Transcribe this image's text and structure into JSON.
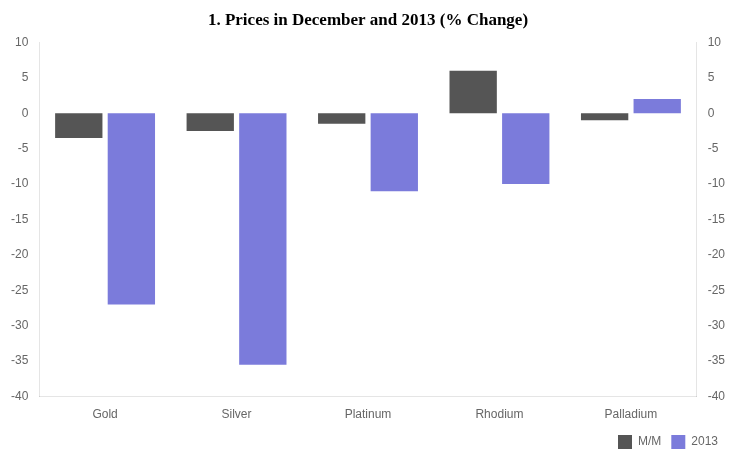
{
  "chart_data": {
    "type": "bar",
    "title": "1. Prices in December and 2013 (% Change)",
    "categories": [
      "Gold",
      "Silver",
      "Platinum",
      "Rhodium",
      "Palladium"
    ],
    "series": [
      {
        "name": "M/M",
        "color": "#555555",
        "values": [
          -3.5,
          -2.5,
          -1.5,
          6.0,
          -1.0
        ]
      },
      {
        "name": "2013",
        "color": "#7b7bdb",
        "values": [
          -27.0,
          -35.5,
          -11.0,
          -10.0,
          2.0
        ]
      }
    ],
    "ylim": [
      -40,
      10
    ],
    "yticks": [
      -40,
      -35,
      -30,
      -25,
      -20,
      -15,
      -10,
      -5,
      0,
      5,
      10
    ],
    "y2lim": [
      -40,
      10
    ],
    "y2ticks": [
      -40,
      -35,
      -30,
      -25,
      -20,
      -15,
      -10,
      -5,
      0,
      5,
      10
    ],
    "grid": false,
    "legend": "lower right"
  }
}
